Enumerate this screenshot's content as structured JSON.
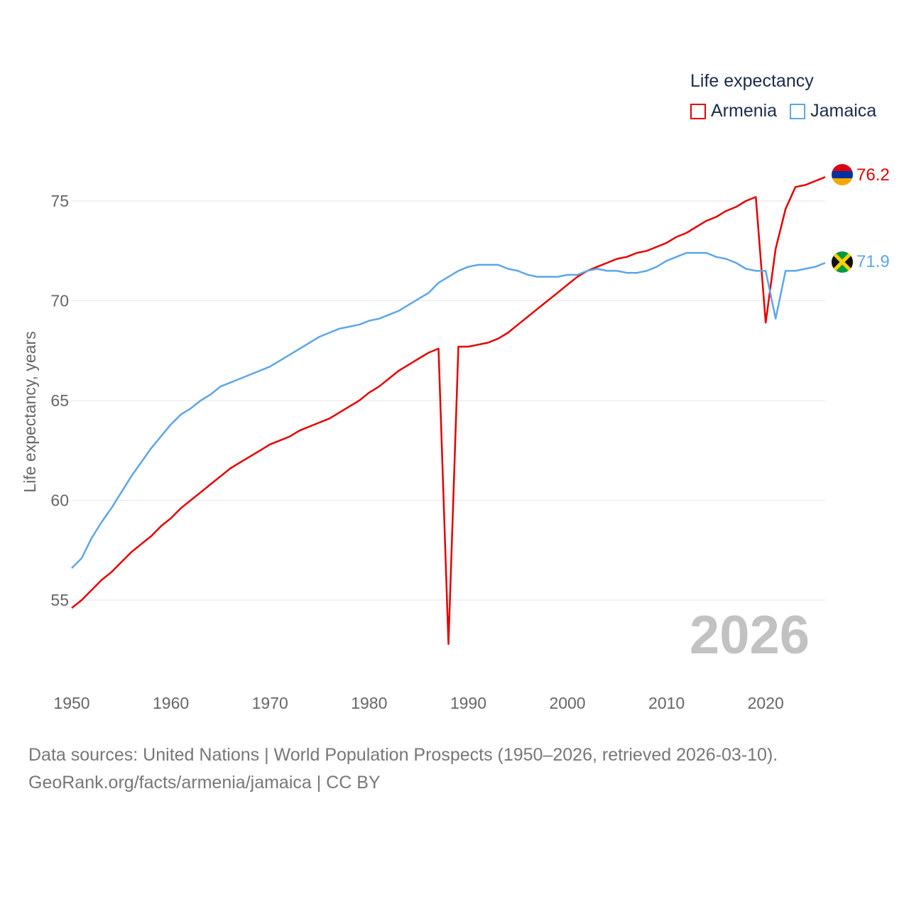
{
  "legend": {
    "title": "Life expectancy",
    "items": [
      {
        "label": "Armenia",
        "color": "#e60000"
      },
      {
        "label": "Jamaica",
        "color": "#5da6e6"
      }
    ]
  },
  "footer": {
    "line1": "Data sources: United Nations | World Population Prospects (1950–2026, retrieved 2026-03-10).",
    "line2": "GeoRank.org/facts/armenia/jamaica | CC BY"
  },
  "year_watermark": "2026",
  "end_labels": {
    "armenia": "76.2",
    "jamaica": "71.9"
  },
  "chart_data": {
    "type": "line",
    "title": "Life expectancy",
    "xlabel": "",
    "ylabel": "Life expectancy, years",
    "xlim": [
      1950,
      2026
    ],
    "ylim": [
      51.5,
      77.5
    ],
    "x_ticks": [
      1950,
      1960,
      1970,
      1980,
      1990,
      2000,
      2010,
      2020
    ],
    "y_ticks": [
      55,
      60,
      65,
      70,
      75
    ],
    "grid": true,
    "legend_position": "top-right",
    "x": [
      1950,
      1951,
      1952,
      1953,
      1954,
      1955,
      1956,
      1957,
      1958,
      1959,
      1960,
      1961,
      1962,
      1963,
      1964,
      1965,
      1966,
      1967,
      1968,
      1969,
      1970,
      1971,
      1972,
      1973,
      1974,
      1975,
      1976,
      1977,
      1978,
      1979,
      1980,
      1981,
      1982,
      1983,
      1984,
      1985,
      1986,
      1987,
      1988,
      1989,
      1990,
      1991,
      1992,
      1993,
      1994,
      1995,
      1996,
      1997,
      1998,
      1999,
      2000,
      2001,
      2002,
      2003,
      2004,
      2005,
      2006,
      2007,
      2008,
      2009,
      2010,
      2011,
      2012,
      2013,
      2014,
      2015,
      2016,
      2017,
      2018,
      2019,
      2020,
      2021,
      2022,
      2023,
      2024,
      2025,
      2026
    ],
    "series": [
      {
        "name": "Armenia",
        "color": "#e60000",
        "flag": "armenia",
        "values": [
          54.6,
          55.0,
          55.5,
          56.0,
          56.4,
          56.9,
          57.4,
          57.8,
          58.2,
          58.7,
          59.1,
          59.6,
          60.0,
          60.4,
          60.8,
          61.2,
          61.6,
          61.9,
          62.2,
          62.5,
          62.8,
          63.0,
          63.2,
          63.5,
          63.7,
          63.9,
          64.1,
          64.4,
          64.7,
          65.0,
          65.4,
          65.7,
          66.1,
          66.5,
          66.8,
          67.1,
          67.4,
          67.6,
          52.8,
          67.7,
          67.7,
          67.8,
          67.9,
          68.1,
          68.4,
          68.8,
          69.2,
          69.6,
          70.0,
          70.4,
          70.8,
          71.2,
          71.5,
          71.7,
          71.9,
          72.1,
          72.2,
          72.4,
          72.5,
          72.7,
          72.9,
          73.2,
          73.4,
          73.7,
          74.0,
          74.2,
          74.5,
          74.7,
          75.0,
          75.2,
          68.9,
          72.6,
          74.6,
          75.7,
          75.8,
          76.0,
          76.2
        ]
      },
      {
        "name": "Jamaica",
        "color": "#5da6e6",
        "flag": "jamaica",
        "values": [
          56.6,
          57.1,
          58.1,
          58.9,
          59.6,
          60.4,
          61.2,
          61.9,
          62.6,
          63.2,
          63.8,
          64.3,
          64.6,
          65.0,
          65.3,
          65.7,
          65.9,
          66.1,
          66.3,
          66.5,
          66.7,
          67.0,
          67.3,
          67.6,
          67.9,
          68.2,
          68.4,
          68.6,
          68.7,
          68.8,
          69.0,
          69.1,
          69.3,
          69.5,
          69.8,
          70.1,
          70.4,
          70.9,
          71.2,
          71.5,
          71.7,
          71.8,
          71.8,
          71.8,
          71.6,
          71.5,
          71.3,
          71.2,
          71.2,
          71.2,
          71.3,
          71.3,
          71.5,
          71.6,
          71.5,
          71.5,
          71.4,
          71.4,
          71.5,
          71.7,
          72.0,
          72.2,
          72.4,
          72.4,
          72.4,
          72.2,
          72.1,
          71.9,
          71.6,
          71.5,
          71.5,
          69.1,
          71.5,
          71.5,
          71.6,
          71.7,
          71.9
        ]
      }
    ]
  }
}
